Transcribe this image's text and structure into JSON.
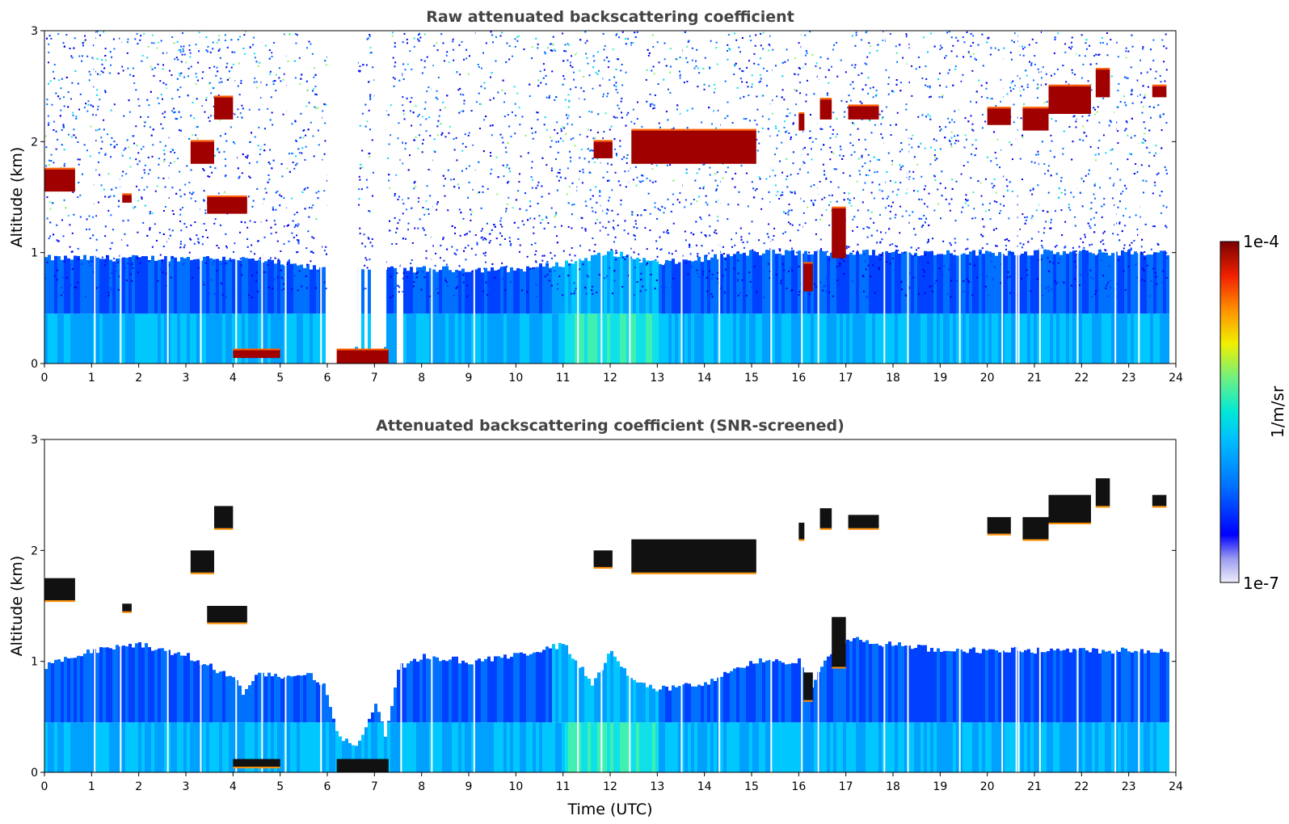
{
  "chart_data": [
    {
      "type": "heatmap",
      "title": "Raw attenuated backscattering coefficient",
      "xlabel": "",
      "ylabel": "Altitude (km)",
      "xlim": [
        0,
        24
      ],
      "ylim": [
        0,
        3
      ],
      "xticks": [
        "0",
        "1",
        "2",
        "3",
        "4",
        "5",
        "6",
        "7",
        "8",
        "9",
        "10",
        "11",
        "12",
        "13",
        "14",
        "15",
        "16",
        "17",
        "18",
        "19",
        "20",
        "21",
        "22",
        "23",
        "24"
      ],
      "yticks": [
        "0",
        "1",
        "2",
        "3"
      ],
      "aerosol_top_km": [
        [
          0,
          0.95
        ],
        [
          1,
          0.95
        ],
        [
          2,
          0.95
        ],
        [
          3,
          0.95
        ],
        [
          4,
          0.95
        ],
        [
          5,
          0.9
        ],
        [
          5.9,
          0.85
        ],
        [
          7.6,
          0.85
        ],
        [
          8,
          0.85
        ],
        [
          9,
          0.85
        ],
        [
          10,
          0.85
        ],
        [
          11,
          0.9
        ],
        [
          12,
          1.0
        ],
        [
          13,
          0.9
        ],
        [
          14,
          0.95
        ],
        [
          15,
          1.0
        ],
        [
          16,
          1.0
        ],
        [
          17,
          1.0
        ],
        [
          18,
          1.0
        ],
        [
          19,
          1.0
        ],
        [
          20,
          1.0
        ],
        [
          21,
          1.0
        ],
        [
          22,
          1.0
        ],
        [
          23,
          1.0
        ],
        [
          23.8,
          1.0
        ]
      ],
      "cloud_layers": [
        {
          "t_start": 0.0,
          "t_end": 0.65,
          "base_km": 1.55,
          "top_km": 1.75
        },
        {
          "t_start": 1.65,
          "t_end": 1.85,
          "base_km": 1.45,
          "top_km": 1.52
        },
        {
          "t_start": 3.1,
          "t_end": 3.6,
          "base_km": 1.8,
          "top_km": 2.0
        },
        {
          "t_start": 3.45,
          "t_end": 4.3,
          "base_km": 1.35,
          "top_km": 1.5
        },
        {
          "t_start": 3.6,
          "t_end": 4.0,
          "base_km": 2.2,
          "top_km": 2.4
        },
        {
          "t_start": 4.0,
          "t_end": 5.0,
          "base_km": 0.05,
          "top_km": 0.12
        },
        {
          "t_start": 6.2,
          "t_end": 7.3,
          "base_km": 0.0,
          "top_km": 0.12
        },
        {
          "t_start": 11.65,
          "t_end": 12.05,
          "base_km": 1.85,
          "top_km": 2.0
        },
        {
          "t_start": 12.45,
          "t_end": 15.1,
          "base_km": 1.8,
          "top_km": 2.1
        },
        {
          "t_start": 16.0,
          "t_end": 16.12,
          "base_km": 2.1,
          "top_km": 2.25
        },
        {
          "t_start": 16.45,
          "t_end": 16.7,
          "base_km": 2.2,
          "top_km": 2.38
        },
        {
          "t_start": 17.05,
          "t_end": 17.7,
          "base_km": 2.2,
          "top_km": 2.32
        },
        {
          "t_start": 16.1,
          "t_end": 16.3,
          "base_km": 0.65,
          "top_km": 0.9
        },
        {
          "t_start": 16.7,
          "t_end": 17.0,
          "base_km": 0.95,
          "top_km": 1.4
        },
        {
          "t_start": 20.0,
          "t_end": 20.5,
          "base_km": 2.15,
          "top_km": 2.3
        },
        {
          "t_start": 20.75,
          "t_end": 21.3,
          "base_km": 2.1,
          "top_km": 2.3
        },
        {
          "t_start": 21.3,
          "t_end": 22.2,
          "base_km": 2.25,
          "top_km": 2.5
        },
        {
          "t_start": 22.3,
          "t_end": 22.6,
          "base_km": 2.4,
          "top_km": 2.65
        },
        {
          "t_start": 23.5,
          "t_end": 23.8,
          "base_km": 2.4,
          "top_km": 2.5
        }
      ]
    },
    {
      "type": "heatmap",
      "title": "Attenuated backscattering coefficient (SNR-screened)",
      "xlabel": "Time (UTC)",
      "ylabel": "Altitude (km)",
      "xlim": [
        0,
        24
      ],
      "ylim": [
        0,
        3
      ],
      "xticks": [
        "0",
        "1",
        "2",
        "3",
        "4",
        "5",
        "6",
        "7",
        "8",
        "9",
        "10",
        "11",
        "12",
        "13",
        "14",
        "15",
        "16",
        "17",
        "18",
        "19",
        "20",
        "21",
        "22",
        "23",
        "24"
      ],
      "yticks": [
        "0",
        "1",
        "2",
        "3"
      ],
      "screened_top_km": [
        [
          0,
          0.95
        ],
        [
          0.5,
          1.05
        ],
        [
          1,
          1.1
        ],
        [
          2,
          1.15
        ],
        [
          3,
          1.05
        ],
        [
          3.5,
          0.95
        ],
        [
          4,
          0.85
        ],
        [
          4.2,
          0.7
        ],
        [
          4.5,
          0.9
        ],
        [
          5,
          0.85
        ],
        [
          5.5,
          0.9
        ],
        [
          5.9,
          0.8
        ],
        [
          6.2,
          0.3
        ],
        [
          6.6,
          0.25
        ],
        [
          7.0,
          0.6
        ],
        [
          7.2,
          0.35
        ],
        [
          7.5,
          0.95
        ],
        [
          8,
          1.05
        ],
        [
          9,
          1.0
        ],
        [
          10,
          1.05
        ],
        [
          11,
          1.15
        ],
        [
          11.6,
          0.8
        ],
        [
          12,
          1.1
        ],
        [
          12.5,
          0.8
        ],
        [
          13,
          0.75
        ],
        [
          14,
          0.8
        ],
        [
          15,
          1.0
        ],
        [
          16,
          1.0
        ],
        [
          16.2,
          0.75
        ],
        [
          16.5,
          1.0
        ],
        [
          17,
          1.2
        ],
        [
          18,
          1.15
        ],
        [
          19,
          1.1
        ],
        [
          20,
          1.1
        ],
        [
          21,
          1.1
        ],
        [
          22,
          1.1
        ],
        [
          23,
          1.1
        ],
        [
          23.8,
          1.1
        ]
      ]
    }
  ],
  "colorbar": {
    "label": "1/m/sr",
    "max_label": "1e-4",
    "min_label": "1e-7",
    "colors": [
      "#e8e8f8",
      "#b0b0f0",
      "#6a6af5",
      "#0000ff",
      "#0050ff",
      "#00a0ff",
      "#00d8f0",
      "#40f0b0",
      "#a0f060",
      "#f0f000",
      "#ffa000",
      "#ff4000",
      "#d00000",
      "#7a0000"
    ]
  }
}
